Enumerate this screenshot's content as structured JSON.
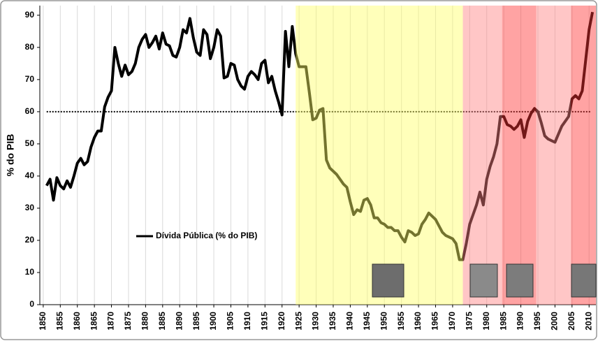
{
  "chart_data": {
    "type": "line",
    "y_label": "% do PIB",
    "x": [
      1851,
      1852,
      1853,
      1854,
      1855,
      1856,
      1857,
      1858,
      1859,
      1860,
      1861,
      1862,
      1863,
      1864,
      1865,
      1866,
      1867,
      1868,
      1869,
      1870,
      1871,
      1872,
      1873,
      1874,
      1875,
      1876,
      1877,
      1878,
      1879,
      1880,
      1881,
      1882,
      1883,
      1884,
      1885,
      1886,
      1887,
      1888,
      1889,
      1890,
      1891,
      1892,
      1893,
      1894,
      1895,
      1896,
      1897,
      1898,
      1899,
      1900,
      1901,
      1902,
      1903,
      1904,
      1905,
      1906,
      1907,
      1908,
      1909,
      1910,
      1911,
      1912,
      1913,
      1914,
      1915,
      1916,
      1917,
      1918,
      1919,
      1920,
      1921,
      1922,
      1923,
      1924,
      1925,
      1926,
      1927,
      1928,
      1929,
      1930,
      1931,
      1932,
      1933,
      1934,
      1935,
      1936,
      1937,
      1938,
      1939,
      1940,
      1941,
      1942,
      1943,
      1944,
      1945,
      1946,
      1947,
      1948,
      1949,
      1950,
      1951,
      1952,
      1953,
      1954,
      1955,
      1956,
      1957,
      1958,
      1959,
      1960,
      1961,
      1962,
      1963,
      1964,
      1965,
      1966,
      1967,
      1968,
      1969,
      1970,
      1971,
      1972,
      1973,
      1974,
      1975,
      1976,
      1977,
      1978,
      1979,
      1980,
      1981,
      1982,
      1983,
      1984,
      1985,
      1986,
      1987,
      1988,
      1989,
      1990,
      1991,
      1992,
      1993,
      1994,
      1995,
      1996,
      1997,
      1998,
      1999,
      2000,
      2001,
      2002,
      2003,
      2004,
      2005,
      2006,
      2007,
      2008,
      2009,
      2010,
      2011
    ],
    "series": [
      {
        "name": "Dívida Pública (% do PIB)",
        "color": "#000000",
        "values": [
          37,
          39,
          32.5,
          39.5,
          37,
          36,
          38.5,
          36.5,
          40,
          44,
          45.5,
          43.5,
          44.5,
          49,
          52,
          54,
          54,
          61.5,
          64.5,
          66.5,
          80,
          75,
          71,
          74.5,
          71.5,
          72.5,
          75,
          80,
          82.5,
          84,
          80,
          81.5,
          83.5,
          79.5,
          84.5,
          81,
          80.5,
          77.5,
          77,
          80,
          85.5,
          84.5,
          89,
          83,
          78.5,
          77.5,
          85.5,
          84,
          76.5,
          80,
          85.5,
          83.5,
          70.5,
          71,
          75,
          74.5,
          70,
          68,
          67,
          71,
          72.5,
          71.5,
          70,
          75,
          76,
          69,
          71,
          66.5,
          63,
          59,
          85,
          74,
          86.5,
          78,
          74,
          74,
          74,
          66,
          57.5,
          58,
          60.5,
          61,
          45,
          42.5,
          41.5,
          40.5,
          39,
          37.5,
          36.5,
          32,
          28,
          29.5,
          29,
          32.5,
          33,
          31,
          27,
          27,
          25.5,
          25,
          24,
          24,
          23,
          23,
          21,
          19.5,
          23,
          22.5,
          21.5,
          22,
          25,
          26.5,
          28.5,
          27.5,
          26.5,
          24.5,
          22.5,
          21.5,
          21,
          20.5,
          19,
          14,
          14,
          19,
          25,
          28,
          31,
          35,
          31,
          39,
          43,
          46,
          50,
          58.5,
          58.5,
          56,
          55.5,
          54.5,
          55.5,
          57.5,
          52,
          57,
          59.5,
          61,
          60,
          56.5,
          52.5,
          51.5,
          51,
          50.5,
          53,
          55.5,
          57,
          58.5,
          64,
          65,
          64,
          66.5,
          76,
          85.5,
          91
        ]
      }
    ],
    "xlim": [
      1849,
      2012
    ],
    "xticks": [
      1850,
      1855,
      1860,
      1865,
      1870,
      1875,
      1880,
      1885,
      1890,
      1895,
      1900,
      1905,
      1910,
      1915,
      1920,
      1925,
      1930,
      1935,
      1940,
      1945,
      1950,
      1955,
      1960,
      1965,
      1970,
      1975,
      1980,
      1985,
      1990,
      1995,
      2000,
      2005,
      2010
    ],
    "ylim": [
      0,
      93
    ],
    "yticks": [
      0,
      10,
      20,
      30,
      40,
      50,
      60,
      70,
      80,
      90
    ],
    "grid": true,
    "reference_line": 60,
    "legend": "lower left",
    "bands": [
      {
        "start": 1924,
        "end": 1973,
        "color": "#ffff66"
      },
      {
        "start": 1973,
        "end": 1984.5,
        "color": "#ff8080"
      },
      {
        "start": 1984.5,
        "end": 1994.5,
        "color": "#ff3333"
      },
      {
        "start": 1994.5,
        "end": 2004.7,
        "color": "#ff8080"
      },
      {
        "start": 2004.7,
        "end": 2012,
        "color": "#ff3333"
      }
    ]
  }
}
